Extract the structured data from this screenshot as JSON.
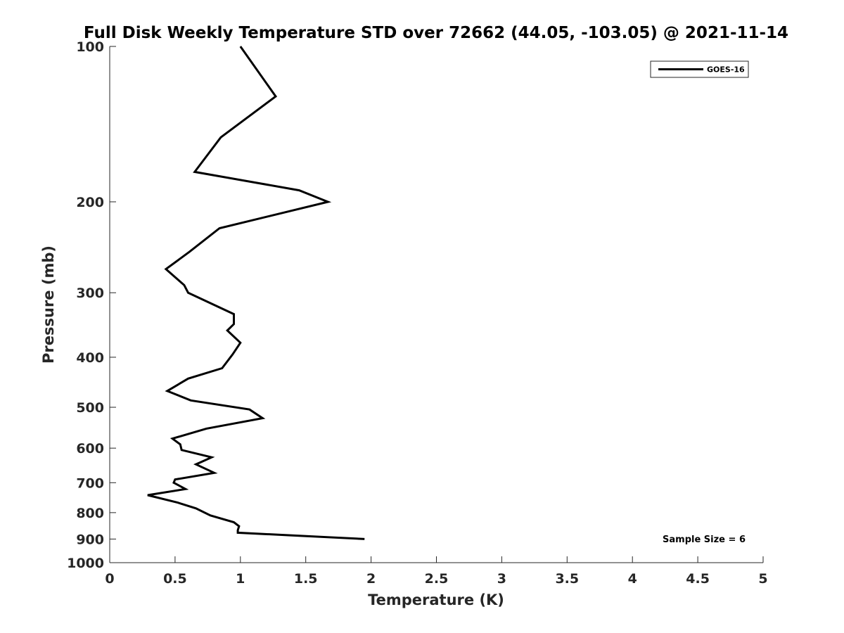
{
  "chart_data": {
    "type": "line",
    "title": "Full Disk Weekly Temperature STD over 72662 (44.05, -103.05) @ 2021-11-14",
    "xlabel": "Temperature (K)",
    "ylabel": "Pressure (mb)",
    "xlim": [
      0,
      5
    ],
    "ylim": [
      100,
      1000
    ],
    "yscale": "log",
    "y_reversed": true,
    "grid": false,
    "xticks": [
      0,
      0.5,
      1,
      1.5,
      2,
      2.5,
      3,
      3.5,
      4,
      4.5,
      5
    ],
    "xtick_labels": [
      "0",
      "0.5",
      "1",
      "1.5",
      "2",
      "2.5",
      "3",
      "3.5",
      "4",
      "4.5",
      "5"
    ],
    "yticks": [
      100,
      200,
      300,
      400,
      500,
      600,
      700,
      800,
      900,
      1000
    ],
    "ytick_labels": [
      "100",
      "200",
      "300",
      "400",
      "500",
      "600",
      "700",
      "800",
      "900",
      "1000"
    ],
    "legend_position": "top-right",
    "series": [
      {
        "name": "GOES-16",
        "color": "#000000",
        "x": [
          1.0,
          1.27,
          0.85,
          0.65,
          1.45,
          1.67,
          0.84,
          0.61,
          0.43,
          0.57,
          0.6,
          0.95,
          0.95,
          0.9,
          1.0,
          0.94,
          0.86,
          0.6,
          0.44,
          0.62,
          1.07,
          1.17,
          0.74,
          0.48,
          0.54,
          0.55,
          0.78,
          0.66,
          0.8,
          0.5,
          0.49,
          0.58,
          0.29,
          0.52,
          0.66,
          0.77,
          0.95,
          0.99,
          0.98,
          0.98,
          1.95
        ],
        "y": [
          100,
          125,
          150,
          175,
          190,
          200,
          225,
          250,
          270,
          290,
          300,
          330,
          345,
          355,
          375,
          395,
          420,
          440,
          465,
          485,
          505,
          525,
          550,
          575,
          590,
          605,
          625,
          645,
          670,
          690,
          700,
          720,
          740,
          765,
          785,
          810,
          835,
          850,
          865,
          875,
          900
        ]
      }
    ],
    "annotation": "Sample Size = 6"
  }
}
